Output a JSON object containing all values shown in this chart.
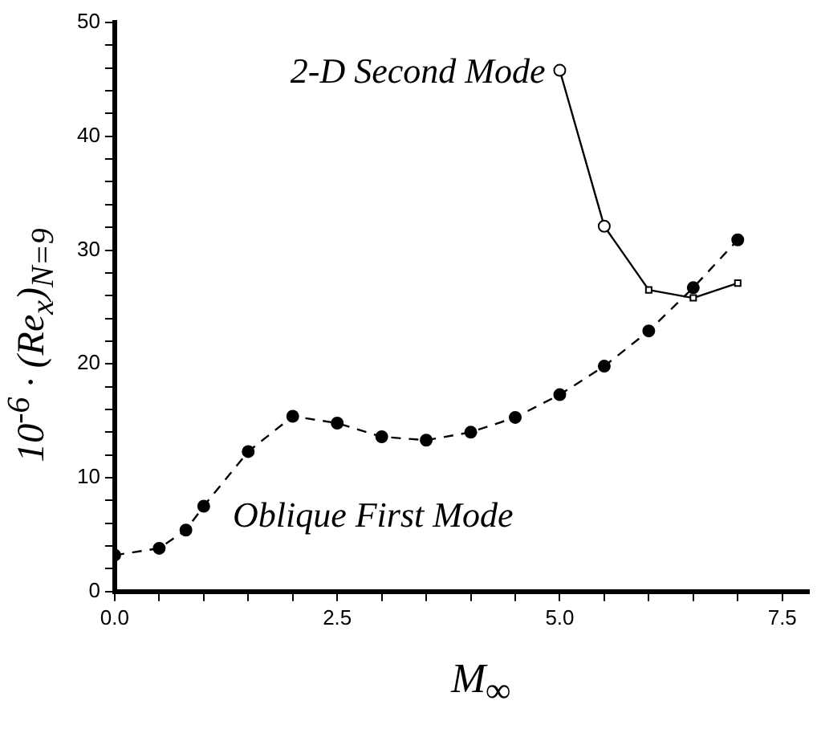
{
  "chart_data": {
    "type": "line",
    "xlabel": "M$_{∞}$",
    "ylabel": "10$^{-6}$ · (Re$_{x}$)$_{N=9}$",
    "xlim": [
      0,
      7.8
    ],
    "ylim": [
      0,
      50
    ],
    "xticks": [
      {
        "value": 0,
        "label": "0.0"
      },
      {
        "value": 0.5,
        "label": null
      },
      {
        "value": 1,
        "label": null
      },
      {
        "value": 1.5,
        "label": null
      },
      {
        "value": 2,
        "label": null
      },
      {
        "value": 2.5,
        "label": "2.5"
      },
      {
        "value": 3,
        "label": null
      },
      {
        "value": 3.5,
        "label": null
      },
      {
        "value": 4,
        "label": null
      },
      {
        "value": 4.5,
        "label": null
      },
      {
        "value": 5,
        "label": "5.0"
      },
      {
        "value": 5.5,
        "label": null
      },
      {
        "value": 6,
        "label": null
      },
      {
        "value": 6.5,
        "label": null
      },
      {
        "value": 7,
        "label": null
      },
      {
        "value": 7.5,
        "label": "7.5"
      }
    ],
    "yticks": [
      0,
      {
        "value": 2,
        "label": null
      },
      {
        "value": 4,
        "label": null
      },
      {
        "value": 6,
        "label": null
      },
      {
        "value": 8,
        "label": null
      },
      10,
      {
        "value": 12,
        "label": null
      },
      {
        "value": 14,
        "label": null
      },
      {
        "value": 16,
        "label": null
      },
      {
        "value": 18,
        "label": null
      },
      20,
      {
        "value": 22,
        "label": null
      },
      {
        "value": 24,
        "label": null
      },
      {
        "value": 26,
        "label": null
      },
      {
        "value": 28,
        "label": null
      },
      30,
      {
        "value": 32,
        "label": null
      },
      {
        "value": 34,
        "label": null
      },
      {
        "value": 36,
        "label": null
      },
      {
        "value": 38,
        "label": null
      },
      40,
      {
        "value": 42,
        "label": null
      },
      {
        "value": 44,
        "label": null
      },
      {
        "value": 46,
        "label": null
      },
      {
        "value": 48,
        "label": null
      },
      50
    ],
    "grid": false,
    "legend": false,
    "series": [
      {
        "name": "Oblique First Mode",
        "color": "#000000",
        "marker": "circle",
        "line_style": "dashed",
        "x": [
          0,
          0.5,
          0.8,
          1,
          1.5,
          2,
          2.5,
          3,
          3.5,
          4,
          4.5,
          5,
          5.5,
          6,
          6.5,
          7
        ],
        "values": [
          3.2,
          3.8,
          5.4,
          7.5,
          12.3,
          15.4,
          14.8,
          13.6,
          13.3,
          14,
          15.3,
          17.3,
          19.8,
          22.9,
          26.7,
          30.9
        ]
      },
      {
        "name": "2-D Second Mode",
        "color": "#000000",
        "marker": [
          "circle",
          "circle",
          "square",
          "square",
          "square"
        ],
        "line_style": "solid",
        "x": [
          5,
          5.5,
          6,
          6.5,
          7
        ],
        "values": [
          45.8,
          32.1,
          26.5,
          25.8,
          27.1
        ]
      }
    ]
  }
}
